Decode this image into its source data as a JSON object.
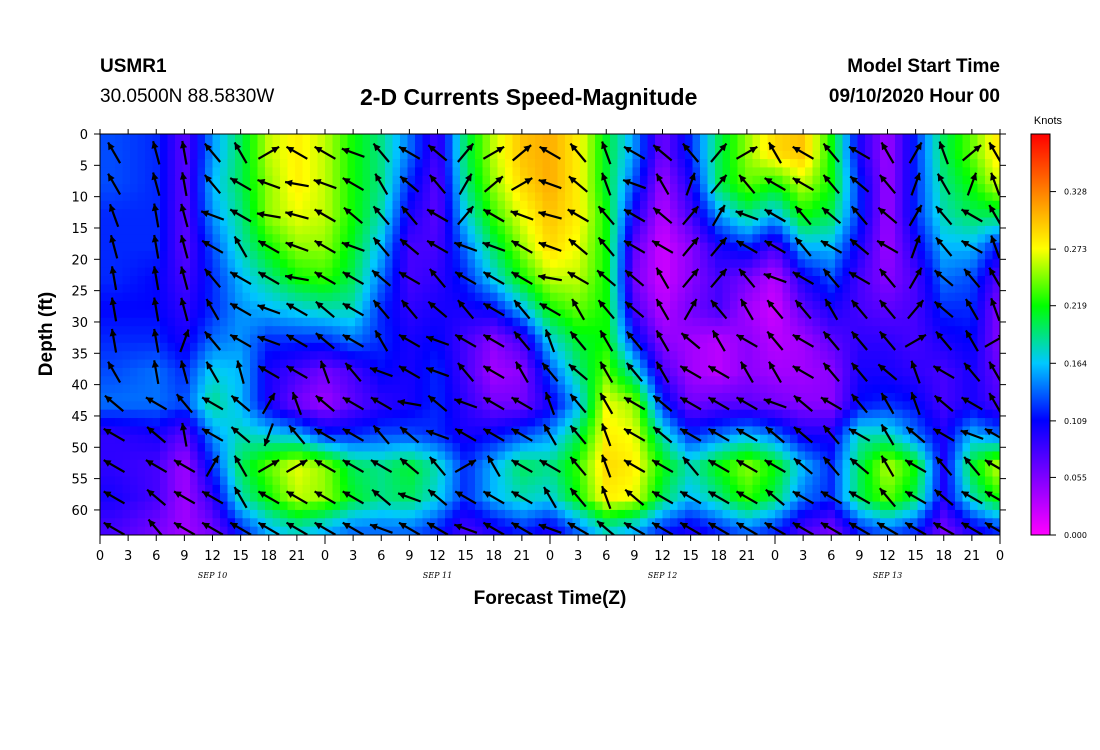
{
  "header": {
    "station": "USMR1",
    "coords": "30.0500N 88.5830W",
    "title": "2-D Currents Speed-Magnitude",
    "model_start_label": "Model Start Time",
    "model_start_value": "09/10/2020 Hour 00"
  },
  "chart_data": {
    "type": "heatmap",
    "title": "2-D Currents Speed-Magnitude",
    "xlabel": "Forecast Time(Z)",
    "ylabel": "Depth (ft)",
    "x_tick_labels": [
      "0",
      "3",
      "6",
      "9",
      "12",
      "15",
      "18",
      "21",
      "0",
      "3",
      "6",
      "9",
      "12",
      "15",
      "18",
      "21",
      "0",
      "3",
      "6",
      "9",
      "12",
      "15",
      "18",
      "21",
      "0",
      "3",
      "6",
      "9",
      "12",
      "15",
      "18",
      "21",
      "0"
    ],
    "date_labels": [
      "SEP 10",
      "SEP 11",
      "SEP 12",
      "SEP 13"
    ],
    "y_ticks": [
      0,
      5,
      10,
      15,
      20,
      25,
      30,
      35,
      40,
      45,
      50,
      55,
      60
    ],
    "xlim_hours": [
      0,
      96
    ],
    "ylim_ft": [
      0,
      64
    ],
    "y_inverted": true,
    "colorbar": {
      "unit": "Knots",
      "min": 0,
      "max": 0.383,
      "tick_values": [
        0.0,
        0.055,
        0.109,
        0.164,
        0.219,
        0.273,
        0.328
      ],
      "tick_labels": [
        "0.000",
        "0.055",
        "0.109",
        "0.164",
        "0.219",
        "0.273",
        "0.328"
      ],
      "colors": [
        "#ff00ff",
        "#7f00ff",
        "#0000ff",
        "#00c8ff",
        "#00ff00",
        "#ffff00",
        "#ff8000",
        "#ff0000"
      ]
    },
    "depth_levels_ft": [
      3,
      8,
      13,
      18,
      23,
      28,
      33,
      38,
      43,
      48,
      53,
      58,
      63
    ],
    "time_columns_hours": [
      1.5,
      6,
      9,
      12,
      15,
      18,
      21,
      24,
      27,
      30,
      33,
      36,
      39,
      42,
      45,
      48,
      51,
      54,
      57,
      60,
      63,
      66,
      69,
      72,
      75,
      78,
      81,
      84,
      87,
      90,
      93,
      95.5
    ],
    "speed_grid": [
      [
        0.13,
        0.12,
        0.07,
        0.15,
        0.2,
        0.26,
        0.28,
        0.26,
        0.22,
        0.19,
        0.14,
        0.08,
        0.2,
        0.26,
        0.3,
        0.31,
        0.28,
        0.21,
        0.15,
        0.06,
        0.12,
        0.2,
        0.25,
        0.29,
        0.3,
        0.22,
        0.1,
        0.04,
        0.12,
        0.2,
        0.24,
        0.28
      ],
      [
        0.13,
        0.12,
        0.07,
        0.16,
        0.2,
        0.25,
        0.28,
        0.26,
        0.22,
        0.19,
        0.12,
        0.07,
        0.19,
        0.25,
        0.29,
        0.31,
        0.28,
        0.21,
        0.13,
        0.04,
        0.1,
        0.2,
        0.24,
        0.22,
        0.26,
        0.22,
        0.12,
        0.04,
        0.12,
        0.19,
        0.22,
        0.26
      ],
      [
        0.12,
        0.12,
        0.07,
        0.15,
        0.19,
        0.25,
        0.27,
        0.26,
        0.22,
        0.18,
        0.1,
        0.07,
        0.17,
        0.23,
        0.27,
        0.3,
        0.28,
        0.22,
        0.1,
        0.03,
        0.08,
        0.15,
        0.19,
        0.16,
        0.22,
        0.2,
        0.12,
        0.04,
        0.12,
        0.18,
        0.2,
        0.2
      ],
      [
        0.12,
        0.12,
        0.07,
        0.13,
        0.18,
        0.22,
        0.25,
        0.25,
        0.21,
        0.16,
        0.08,
        0.08,
        0.14,
        0.2,
        0.25,
        0.29,
        0.27,
        0.22,
        0.07,
        0.02,
        0.05,
        0.1,
        0.12,
        0.08,
        0.16,
        0.16,
        0.1,
        0.04,
        0.1,
        0.16,
        0.16,
        0.12
      ],
      [
        0.12,
        0.11,
        0.08,
        0.12,
        0.16,
        0.19,
        0.22,
        0.23,
        0.2,
        0.14,
        0.08,
        0.09,
        0.12,
        0.17,
        0.22,
        0.26,
        0.26,
        0.22,
        0.06,
        0.02,
        0.05,
        0.08,
        0.06,
        0.03,
        0.1,
        0.13,
        0.08,
        0.05,
        0.08,
        0.14,
        0.13,
        0.08
      ],
      [
        0.11,
        0.11,
        0.09,
        0.12,
        0.15,
        0.16,
        0.17,
        0.18,
        0.18,
        0.12,
        0.09,
        0.1,
        0.1,
        0.11,
        0.16,
        0.22,
        0.24,
        0.22,
        0.08,
        0.03,
        0.06,
        0.08,
        0.04,
        0.02,
        0.07,
        0.1,
        0.08,
        0.07,
        0.08,
        0.12,
        0.12,
        0.06
      ],
      [
        0.12,
        0.12,
        0.1,
        0.14,
        0.15,
        0.12,
        0.12,
        0.12,
        0.14,
        0.12,
        0.1,
        0.11,
        0.08,
        0.05,
        0.08,
        0.17,
        0.21,
        0.22,
        0.12,
        0.05,
        0.04,
        0.03,
        0.05,
        0.03,
        0.04,
        0.07,
        0.09,
        0.09,
        0.08,
        0.1,
        0.11,
        0.06
      ],
      [
        0.13,
        0.14,
        0.12,
        0.17,
        0.16,
        0.1,
        0.08,
        0.06,
        0.08,
        0.11,
        0.1,
        0.12,
        0.08,
        0.04,
        0.05,
        0.13,
        0.19,
        0.24,
        0.18,
        0.08,
        0.04,
        0.03,
        0.05,
        0.04,
        0.04,
        0.05,
        0.1,
        0.1,
        0.09,
        0.08,
        0.1,
        0.07
      ],
      [
        0.14,
        0.14,
        0.13,
        0.19,
        0.16,
        0.1,
        0.06,
        0.04,
        0.07,
        0.09,
        0.1,
        0.12,
        0.09,
        0.06,
        0.06,
        0.1,
        0.16,
        0.27,
        0.25,
        0.12,
        0.06,
        0.07,
        0.07,
        0.06,
        0.05,
        0.05,
        0.11,
        0.12,
        0.11,
        0.08,
        0.1,
        0.08
      ],
      [
        0.09,
        0.1,
        0.07,
        0.15,
        0.18,
        0.17,
        0.16,
        0.12,
        0.12,
        0.13,
        0.13,
        0.12,
        0.1,
        0.11,
        0.13,
        0.15,
        0.2,
        0.28,
        0.27,
        0.18,
        0.12,
        0.14,
        0.16,
        0.14,
        0.1,
        0.1,
        0.18,
        0.18,
        0.14,
        0.1,
        0.16,
        0.14
      ],
      [
        0.09,
        0.08,
        0.04,
        0.12,
        0.2,
        0.24,
        0.27,
        0.25,
        0.2,
        0.19,
        0.21,
        0.18,
        0.12,
        0.16,
        0.2,
        0.19,
        0.23,
        0.29,
        0.28,
        0.22,
        0.18,
        0.22,
        0.25,
        0.22,
        0.16,
        0.12,
        0.2,
        0.26,
        0.22,
        0.1,
        0.21,
        0.26
      ],
      [
        0.1,
        0.08,
        0.04,
        0.09,
        0.18,
        0.22,
        0.26,
        0.25,
        0.21,
        0.19,
        0.2,
        0.17,
        0.12,
        0.16,
        0.18,
        0.17,
        0.22,
        0.28,
        0.27,
        0.2,
        0.16,
        0.19,
        0.23,
        0.2,
        0.14,
        0.12,
        0.2,
        0.24,
        0.2,
        0.1,
        0.18,
        0.22
      ],
      [
        0.08,
        0.06,
        0.04,
        0.06,
        0.12,
        0.16,
        0.18,
        0.16,
        0.14,
        0.14,
        0.14,
        0.12,
        0.08,
        0.1,
        0.12,
        0.1,
        0.14,
        0.18,
        0.16,
        0.12,
        0.1,
        0.12,
        0.14,
        0.12,
        0.08,
        0.06,
        0.12,
        0.14,
        0.12,
        0.06,
        0.1,
        0.12
      ]
    ],
    "direction_grid_deg": [
      [
        330,
        345,
        350,
        320,
        330,
        60,
        300,
        300,
        290,
        320,
        300,
        310,
        40,
        60,
        50,
        300,
        320,
        340,
        300,
        310,
        320,
        40,
        60,
        330,
        300,
        320,
        300,
        330,
        30,
        340,
        50,
        330
      ],
      [
        330,
        345,
        350,
        320,
        300,
        290,
        280,
        290,
        300,
        330,
        310,
        320,
        30,
        50,
        60,
        290,
        310,
        340,
        290,
        330,
        20,
        40,
        320,
        300,
        300,
        320,
        310,
        320,
        20,
        330,
        20,
        340
      ],
      [
        340,
        350,
        345,
        290,
        300,
        280,
        285,
        300,
        310,
        320,
        320,
        300,
        40,
        300,
        290,
        285,
        300,
        320,
        300,
        310,
        40,
        30,
        290,
        300,
        320,
        310,
        320,
        310,
        30,
        320,
        300,
        330
      ],
      [
        345,
        350,
        345,
        300,
        330,
        300,
        290,
        300,
        290,
        320,
        310,
        300,
        290,
        290,
        300,
        290,
        310,
        320,
        300,
        300,
        40,
        40,
        300,
        300,
        320,
        300,
        310,
        300,
        20,
        320,
        300,
        340
      ],
      [
        350,
        350,
        345,
        320,
        300,
        300,
        280,
        300,
        300,
        310,
        300,
        320,
        300,
        300,
        300,
        280,
        300,
        310,
        310,
        330,
        40,
        40,
        320,
        290,
        300,
        320,
        300,
        320,
        30,
        310,
        320,
        330
      ],
      [
        350,
        350,
        345,
        330,
        300,
        290,
        300,
        310,
        300,
        320,
        320,
        310,
        320,
        300,
        320,
        300,
        330,
        320,
        310,
        330,
        30,
        320,
        330,
        320,
        320,
        330,
        320,
        320,
        40,
        310,
        330,
        340
      ],
      [
        350,
        350,
        20,
        320,
        300,
        290,
        300,
        310,
        300,
        330,
        300,
        290,
        300,
        300,
        320,
        340,
        320,
        330,
        320,
        330,
        310,
        330,
        300,
        320,
        300,
        320,
        320,
        320,
        60,
        320,
        330,
        60
      ],
      [
        330,
        350,
        345,
        330,
        345,
        300,
        300,
        340,
        320,
        290,
        300,
        290,
        320,
        300,
        330,
        320,
        310,
        330,
        320,
        330,
        300,
        300,
        330,
        330,
        300,
        320,
        320,
        310,
        340,
        300,
        320,
        330
      ],
      [
        310,
        300,
        320,
        300,
        310,
        30,
        340,
        310,
        300,
        300,
        280,
        310,
        290,
        300,
        300,
        340,
        320,
        330,
        300,
        310,
        300,
        300,
        300,
        290,
        310,
        300,
        320,
        330,
        340,
        310,
        300,
        330
      ],
      [
        300,
        310,
        350,
        300,
        310,
        200,
        320,
        300,
        300,
        320,
        310,
        290,
        300,
        300,
        300,
        330,
        320,
        340,
        300,
        310,
        300,
        300,
        300,
        310,
        310,
        320,
        300,
        330,
        310,
        300,
        290,
        300
      ],
      [
        300,
        300,
        300,
        30,
        330,
        60,
        60,
        300,
        300,
        300,
        310,
        320,
        60,
        330,
        300,
        300,
        320,
        340,
        300,
        300,
        320,
        300,
        300,
        300,
        310,
        320,
        310,
        330,
        300,
        320,
        320,
        300
      ],
      [
        300,
        310,
        300,
        300,
        330,
        300,
        300,
        300,
        300,
        310,
        290,
        310,
        300,
        300,
        300,
        330,
        320,
        340,
        310,
        300,
        300,
        300,
        300,
        310,
        300,
        300,
        300,
        320,
        300,
        310,
        300,
        300
      ],
      [
        300,
        320,
        300,
        300,
        300,
        300,
        300,
        300,
        300,
        290,
        300,
        300,
        290,
        300,
        300,
        290,
        300,
        310,
        300,
        300,
        300,
        300,
        300,
        300,
        300,
        300,
        300,
        300,
        300,
        300,
        300,
        300
      ]
    ]
  }
}
